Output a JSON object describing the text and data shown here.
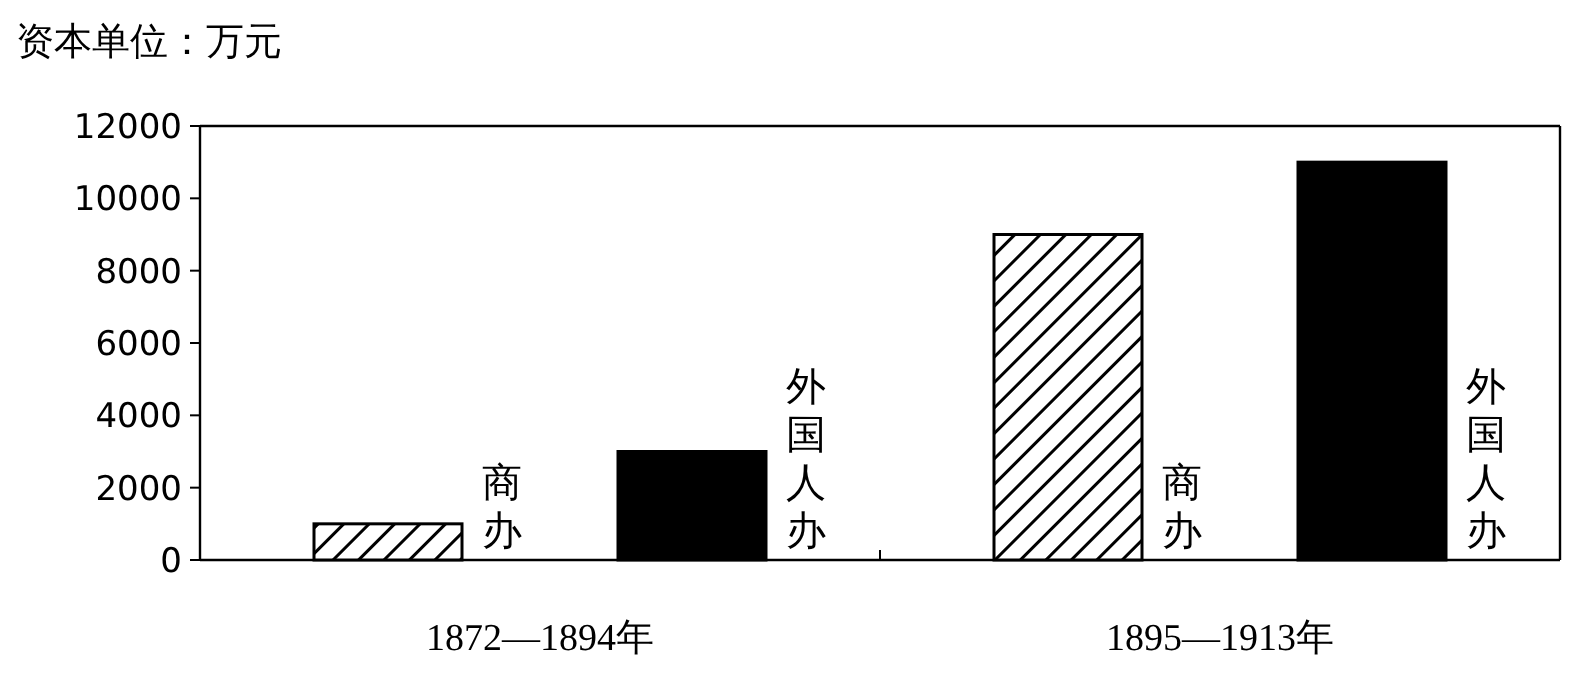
{
  "chart_data": {
    "type": "bar",
    "ylabel": "资本单位：万元",
    "categories": [
      "1872—1894年",
      "1895—1913年"
    ],
    "series": [
      {
        "name": "商办",
        "color": "#000000",
        "values": [
          1000,
          9000
        ]
      },
      {
        "name": "外国人办",
        "color": "#000000",
        "values": [
          3000,
          11000
        ]
      }
    ],
    "ylim": [
      0,
      12000
    ],
    "yticks": [
      0,
      2000,
      4000,
      6000,
      8000,
      10000,
      12000
    ]
  }
}
